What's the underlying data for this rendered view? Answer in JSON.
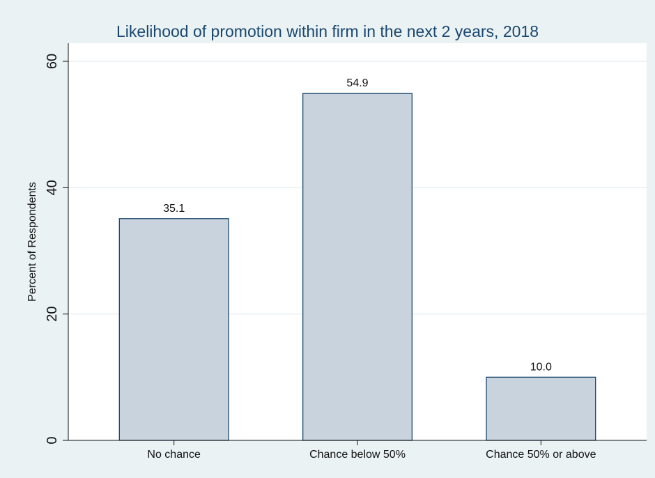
{
  "chart_data": {
    "type": "bar",
    "title": "Likelihood of promotion within firm in the next 2 years, 2018",
    "xlabel": "",
    "ylabel": "Percent of Respondents",
    "categories": [
      "No chance",
      "Chance below 50%",
      "Chance 50% or above"
    ],
    "values": [
      35.1,
      54.9,
      10.0
    ],
    "value_labels": [
      "35.1",
      "54.9",
      "10.0"
    ],
    "ylim": [
      0,
      60
    ],
    "yticks": [
      0,
      20,
      40,
      60
    ],
    "ytick_labels": [
      "0",
      "20",
      "40",
      "60"
    ],
    "grid": true,
    "legend": "none",
    "colors": {
      "background": "#eaf2f3",
      "plot_area": "#ffffff",
      "bar_fill": "#c9d3dd",
      "bar_stroke": "#1a476f",
      "title": "#1a476f",
      "grid": "#e8eff2"
    }
  }
}
